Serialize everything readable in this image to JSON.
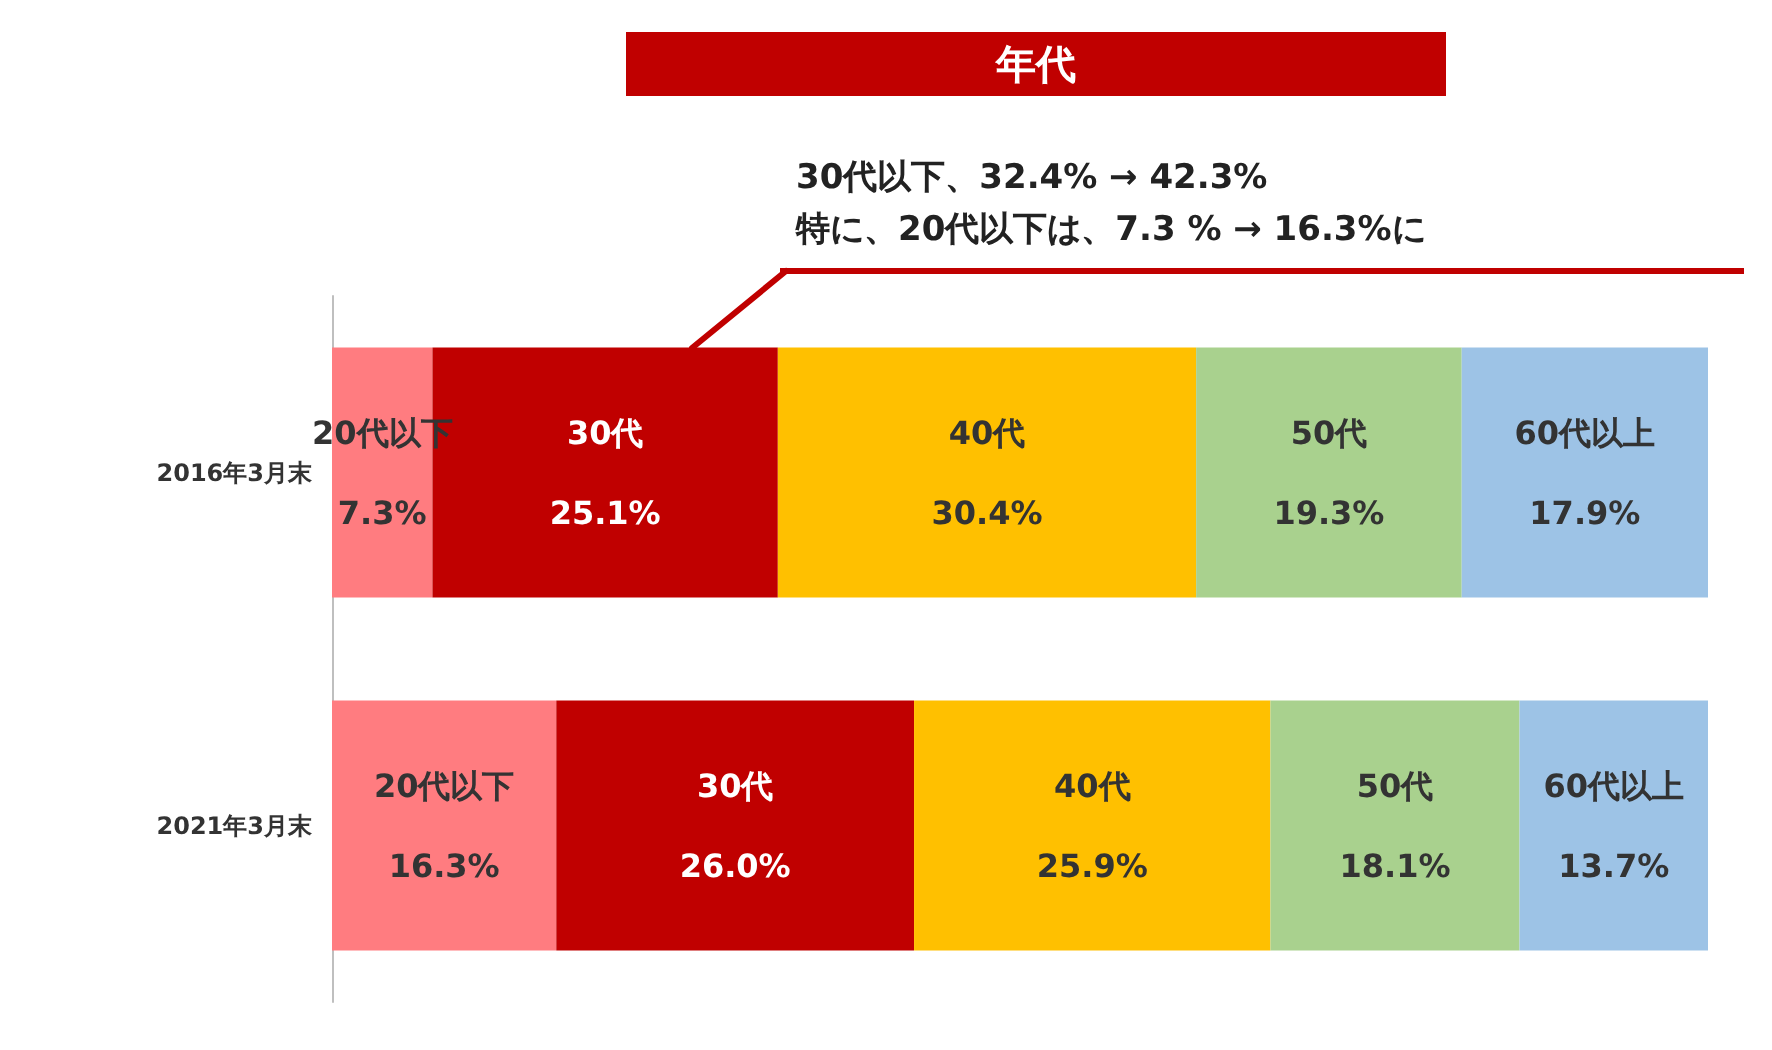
{
  "chart_data": {
    "type": "bar",
    "orientation": "horizontal",
    "stacked": true,
    "title": "年代",
    "annotations": [
      "30代以下、32.4% → 42.3%\n特に、20代以下は、7.3 % → 16.3%に"
    ],
    "categories": [
      "2016年3月末",
      "2021年3月末"
    ],
    "series": [
      {
        "name": "20代以下",
        "color": "#ff7c80",
        "values": [
          7.3,
          16.3
        ],
        "value_labels": [
          "7.3%",
          "16.3%"
        ]
      },
      {
        "name": "30代",
        "color": "#c00000",
        "values": [
          25.1,
          26.0
        ],
        "value_labels": [
          "25.1%",
          "26.0%"
        ]
      },
      {
        "name": "40代",
        "color": "#ffc000",
        "values": [
          30.4,
          25.9
        ],
        "value_labels": [
          "30.4%",
          "25.9%"
        ]
      },
      {
        "name": "50代",
        "color": "#a9d18e",
        "values": [
          19.3,
          18.1
        ],
        "value_labels": [
          "19.3%",
          "18.1%"
        ]
      },
      {
        "name": "60代以上",
        "color": "#9dc3e6",
        "values": [
          17.9,
          13.7
        ],
        "value_labels": [
          "17.9%",
          "13.7%"
        ]
      }
    ],
    "legend": false
  }
}
